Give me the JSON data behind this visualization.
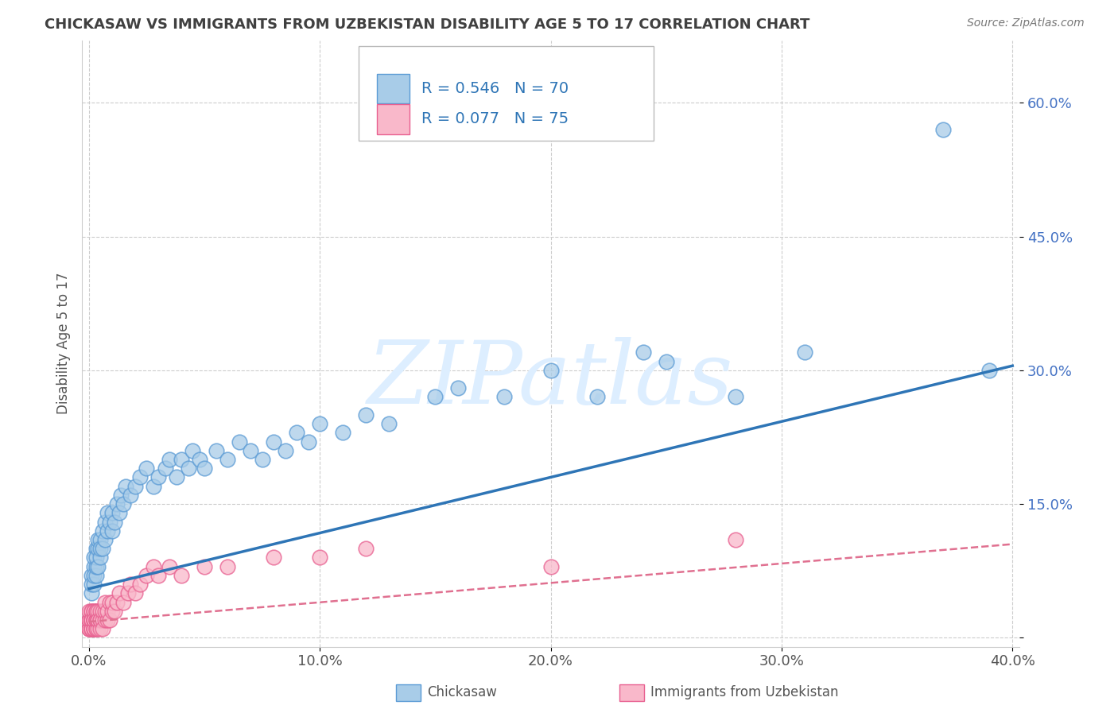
{
  "title": "CHICKASAW VS IMMIGRANTS FROM UZBEKISTAN DISABILITY AGE 5 TO 17 CORRELATION CHART",
  "source": "Source: ZipAtlas.com",
  "xlabel": "",
  "ylabel": "Disability Age 5 to 17",
  "xlim": [
    -0.003,
    0.403
  ],
  "ylim": [
    -0.01,
    0.67
  ],
  "xticks": [
    0.0,
    0.1,
    0.2,
    0.3,
    0.4
  ],
  "xtick_labels": [
    "0.0%",
    "10.0%",
    "20.0%",
    "30.0%",
    "40.0%"
  ],
  "yticks": [
    0.0,
    0.15,
    0.3,
    0.45,
    0.6
  ],
  "ytick_labels": [
    "",
    "15.0%",
    "30.0%",
    "45.0%",
    "60.0%"
  ],
  "chickasaw_R": 0.546,
  "chickasaw_N": 70,
  "uzbekistan_R": 0.077,
  "uzbekistan_N": 75,
  "chickasaw_color": "#a8cce8",
  "uzbekistan_color": "#f9b8ca",
  "chickasaw_edge_color": "#5b9bd5",
  "uzbekistan_edge_color": "#e86090",
  "chickasaw_trend_color": "#2e75b6",
  "uzbekistan_trend_color": "#e07090",
  "background_color": "#ffffff",
  "grid_color": "#cccccc",
  "watermark": "ZIPatlas",
  "watermark_color": "#ddeeff",
  "legend_labels": [
    "Chickasaw",
    "Immigrants from Uzbekistan"
  ],
  "chickasaw_x": [
    0.001,
    0.001,
    0.001,
    0.002,
    0.002,
    0.002,
    0.002,
    0.003,
    0.003,
    0.003,
    0.003,
    0.004,
    0.004,
    0.004,
    0.005,
    0.005,
    0.005,
    0.006,
    0.006,
    0.007,
    0.007,
    0.008,
    0.008,
    0.009,
    0.01,
    0.01,
    0.011,
    0.012,
    0.013,
    0.014,
    0.015,
    0.016,
    0.018,
    0.02,
    0.022,
    0.025,
    0.028,
    0.03,
    0.033,
    0.035,
    0.038,
    0.04,
    0.043,
    0.045,
    0.048,
    0.05,
    0.055,
    0.06,
    0.065,
    0.07,
    0.075,
    0.08,
    0.085,
    0.09,
    0.095,
    0.1,
    0.11,
    0.12,
    0.13,
    0.15,
    0.16,
    0.18,
    0.2,
    0.22,
    0.24,
    0.25,
    0.28,
    0.31,
    0.37,
    0.39
  ],
  "chickasaw_y": [
    0.05,
    0.07,
    0.06,
    0.08,
    0.06,
    0.07,
    0.09,
    0.07,
    0.08,
    0.1,
    0.09,
    0.08,
    0.1,
    0.11,
    0.09,
    0.11,
    0.1,
    0.12,
    0.1,
    0.11,
    0.13,
    0.12,
    0.14,
    0.13,
    0.12,
    0.14,
    0.13,
    0.15,
    0.14,
    0.16,
    0.15,
    0.17,
    0.16,
    0.17,
    0.18,
    0.19,
    0.17,
    0.18,
    0.19,
    0.2,
    0.18,
    0.2,
    0.19,
    0.21,
    0.2,
    0.19,
    0.21,
    0.2,
    0.22,
    0.21,
    0.2,
    0.22,
    0.21,
    0.23,
    0.22,
    0.24,
    0.23,
    0.25,
    0.24,
    0.27,
    0.28,
    0.27,
    0.3,
    0.27,
    0.32,
    0.31,
    0.27,
    0.32,
    0.57,
    0.3
  ],
  "uzbekistan_x": [
    0.0,
    0.0,
    0.0,
    0.0,
    0.0,
    0.0,
    0.0,
    0.001,
    0.001,
    0.001,
    0.001,
    0.001,
    0.001,
    0.001,
    0.001,
    0.001,
    0.001,
    0.001,
    0.002,
    0.002,
    0.002,
    0.002,
    0.002,
    0.002,
    0.002,
    0.002,
    0.002,
    0.003,
    0.003,
    0.003,
    0.003,
    0.003,
    0.003,
    0.003,
    0.004,
    0.004,
    0.004,
    0.004,
    0.004,
    0.005,
    0.005,
    0.005,
    0.005,
    0.006,
    0.006,
    0.006,
    0.007,
    0.007,
    0.007,
    0.008,
    0.008,
    0.009,
    0.009,
    0.01,
    0.01,
    0.011,
    0.012,
    0.013,
    0.015,
    0.017,
    0.018,
    0.02,
    0.022,
    0.025,
    0.028,
    0.03,
    0.035,
    0.04,
    0.05,
    0.06,
    0.08,
    0.1,
    0.12,
    0.2,
    0.28
  ],
  "uzbekistan_y": [
    0.01,
    0.02,
    0.01,
    0.02,
    0.01,
    0.02,
    0.03,
    0.01,
    0.02,
    0.01,
    0.02,
    0.03,
    0.01,
    0.02,
    0.01,
    0.02,
    0.03,
    0.02,
    0.01,
    0.02,
    0.01,
    0.02,
    0.03,
    0.01,
    0.02,
    0.03,
    0.02,
    0.01,
    0.02,
    0.01,
    0.02,
    0.03,
    0.02,
    0.03,
    0.02,
    0.01,
    0.02,
    0.03,
    0.02,
    0.02,
    0.01,
    0.03,
    0.02,
    0.02,
    0.01,
    0.03,
    0.02,
    0.03,
    0.04,
    0.02,
    0.03,
    0.02,
    0.04,
    0.03,
    0.04,
    0.03,
    0.04,
    0.05,
    0.04,
    0.05,
    0.06,
    0.05,
    0.06,
    0.07,
    0.08,
    0.07,
    0.08,
    0.07,
    0.08,
    0.08,
    0.09,
    0.09,
    0.1,
    0.08,
    0.11
  ],
  "chickasaw_trend_x": [
    0.0,
    0.4
  ],
  "chickasaw_trend_y": [
    0.055,
    0.305
  ],
  "uzbekistan_trend_x": [
    0.0,
    0.4
  ],
  "uzbekistan_trend_y": [
    0.018,
    0.105
  ]
}
